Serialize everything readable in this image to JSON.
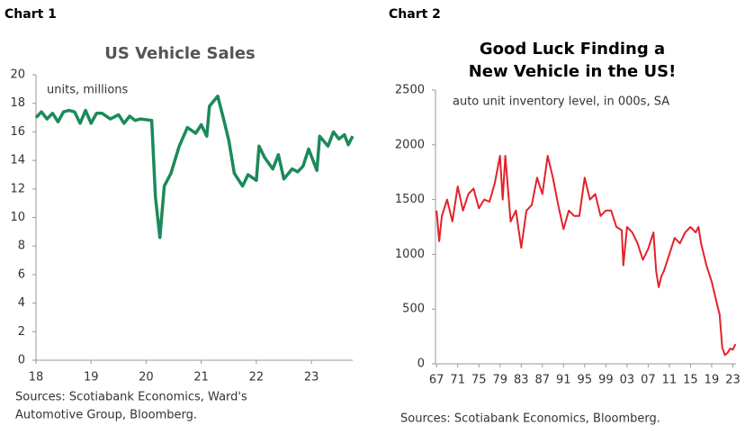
{
  "chart_data": [
    {
      "type": "line",
      "label": "Chart 1",
      "title_lines": [
        "US Vehicle Sales"
      ],
      "subtitle": "units, millions",
      "source_lines": [
        "Sources: Scotiabank Economics, Ward's",
        "Automotive Group, Bloomberg."
      ],
      "series": [
        {
          "name": "US Vehicle Sales",
          "color": "#1b8a5a",
          "x": [
            18.0,
            18.1,
            18.2,
            18.3,
            18.4,
            18.5,
            18.6,
            18.7,
            18.8,
            18.9,
            19.0,
            19.1,
            19.2,
            19.35,
            19.5,
            19.6,
            19.7,
            19.8,
            19.9,
            20.1,
            20.17,
            20.25,
            20.33,
            20.45,
            20.6,
            20.75,
            20.9,
            21.0,
            21.1,
            21.15,
            21.3,
            21.4,
            21.5,
            21.6,
            21.75,
            21.85,
            22.0,
            22.05,
            22.15,
            22.3,
            22.4,
            22.5,
            22.65,
            22.75,
            22.85,
            22.95,
            23.1,
            23.15,
            23.3,
            23.4,
            23.5,
            23.6,
            23.67,
            23.75
          ],
          "values": [
            17.0,
            17.4,
            16.9,
            17.3,
            16.7,
            17.4,
            17.5,
            17.4,
            16.6,
            17.5,
            16.6,
            17.3,
            17.3,
            16.9,
            17.2,
            16.6,
            17.1,
            16.8,
            16.9,
            16.8,
            11.4,
            8.6,
            12.2,
            13.1,
            15.0,
            16.3,
            15.9,
            16.5,
            15.7,
            17.8,
            18.5,
            17.0,
            15.4,
            13.1,
            12.2,
            13.0,
            12.6,
            15.0,
            14.2,
            13.4,
            14.4,
            12.7,
            13.4,
            13.2,
            13.6,
            14.8,
            13.3,
            15.7,
            15.0,
            16.0,
            15.5,
            15.8,
            15.1,
            15.7
          ]
        }
      ],
      "xlim": [
        18,
        23.75
      ],
      "xticks": [
        18,
        19,
        20,
        21,
        22,
        23
      ],
      "ylim": [
        0,
        20
      ],
      "yticks": [
        0,
        2,
        4,
        6,
        8,
        10,
        12,
        14,
        16,
        18,
        20
      ]
    },
    {
      "type": "line",
      "label": "Chart 2",
      "title_lines": [
        "Good Luck Finding a",
        "New Vehicle in the US!"
      ],
      "subtitle": "auto unit inventory level, in 000s, SA",
      "source_lines": [
        "Sources: Scotiabank Economics, Bloomberg."
      ],
      "series": [
        {
          "name": "auto unit inventory level",
          "color": "#e3222b",
          "x": [
            1967,
            1967.5,
            1968,
            1969,
            1970,
            1971,
            1972,
            1973,
            1974,
            1975,
            1976,
            1977,
            1978,
            1979,
            1979.5,
            1980,
            1981,
            1982,
            1983,
            1984,
            1985,
            1986,
            1987,
            1988,
            1989,
            1990,
            1991,
            1992,
            1993,
            1994,
            1995,
            1996,
            1997,
            1998,
            1999,
            2000,
            2001,
            2002,
            2002.3,
            2003,
            2004,
            2005,
            2006,
            2007,
            2008,
            2008.5,
            2009,
            2009.5,
            2010,
            2011,
            2012,
            2013,
            2014,
            2015,
            2016,
            2016.5,
            2017,
            2018,
            2019,
            2020,
            2020.5,
            2021,
            2021.5,
            2022,
            2022.5,
            2023,
            2023.5
          ],
          "values": [
            1400,
            1120,
            1350,
            1500,
            1300,
            1620,
            1400,
            1550,
            1600,
            1420,
            1500,
            1480,
            1650,
            1900,
            1500,
            1900,
            1300,
            1400,
            1060,
            1400,
            1450,
            1700,
            1550,
            1900,
            1700,
            1450,
            1230,
            1400,
            1350,
            1350,
            1700,
            1500,
            1550,
            1350,
            1400,
            1400,
            1250,
            1220,
            900,
            1250,
            1200,
            1100,
            950,
            1050,
            1200,
            850,
            700,
            800,
            850,
            1000,
            1150,
            1100,
            1200,
            1250,
            1200,
            1250,
            1100,
            900,
            750,
            550,
            450,
            150,
            80,
            100,
            140,
            130,
            180
          ]
        }
      ],
      "xlim": [
        1966.8,
        2023.6
      ],
      "xticks": [
        {
          "value": 1967,
          "label": "67"
        },
        {
          "value": 1971,
          "label": "71"
        },
        {
          "value": 1975,
          "label": "75"
        },
        {
          "value": 1979,
          "label": "79"
        },
        {
          "value": 1983,
          "label": "83"
        },
        {
          "value": 1987,
          "label": "87"
        },
        {
          "value": 1991,
          "label": "91"
        },
        {
          "value": 1995,
          "label": "95"
        },
        {
          "value": 1999,
          "label": "99"
        },
        {
          "value": 2003,
          "label": "03"
        },
        {
          "value": 2007,
          "label": "07"
        },
        {
          "value": 2011,
          "label": "11"
        },
        {
          "value": 2015,
          "label": "15"
        },
        {
          "value": 2019,
          "label": "19"
        },
        {
          "value": 2023,
          "label": "23"
        }
      ],
      "ylim": [
        0,
        2500
      ],
      "yticks": [
        0,
        500,
        1000,
        1500,
        2000,
        2500
      ]
    }
  ]
}
